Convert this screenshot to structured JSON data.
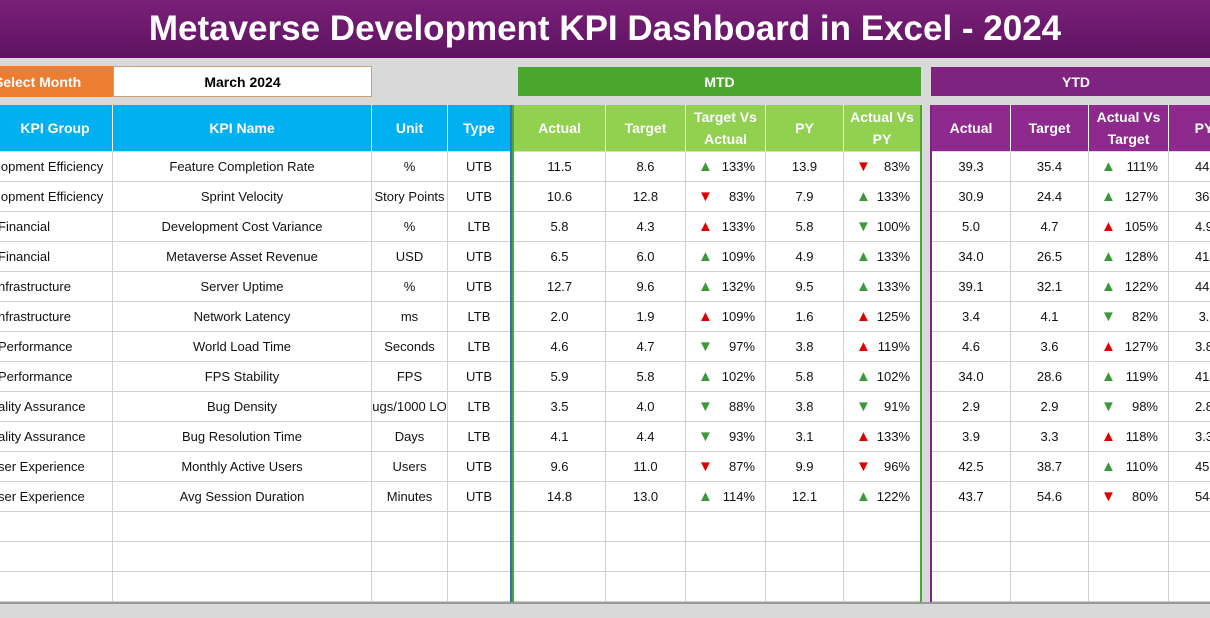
{
  "header": {
    "title": "Metaverse Development KPI Dashboard in Excel - 2024"
  },
  "controls": {
    "select_label": "Select Month",
    "month": "March 2024"
  },
  "sections": {
    "mtd": "MTD",
    "ytd": "YTD"
  },
  "table": {
    "columns": [
      "KPI Group",
      "KPI Name",
      "Unit",
      "Type",
      "Actual",
      "Target",
      "Target Vs Actual",
      "PY",
      "Actual Vs PY",
      "Actual",
      "Target",
      "Actual Vs Target",
      "PY"
    ],
    "rows": [
      [
        "lopment Efficiency",
        "Feature Completion Rate",
        "%",
        "UTB",
        "11.5",
        "8.6",
        "133%",
        "13.9",
        "83%",
        "39.3",
        "35.4",
        "111%",
        "44."
      ],
      [
        "lopment Efficiency",
        "Sprint Velocity",
        "Story Points",
        "UTB",
        "10.6",
        "12.8",
        "83%",
        "7.9",
        "133%",
        "30.9",
        "24.4",
        "127%",
        "36."
      ],
      [
        "Financial",
        "Development Cost Variance",
        "%",
        "LTB",
        "5.8",
        "4.3",
        "133%",
        "5.8",
        "100%",
        "5.0",
        "4.7",
        "105%",
        "4.9"
      ],
      [
        "Financial",
        "Metaverse Asset Revenue",
        "USD",
        "UTB",
        "6.5",
        "6.0",
        "109%",
        "4.9",
        "133%",
        "34.0",
        "26.5",
        "128%",
        "41."
      ],
      [
        "nfrastructure",
        "Server Uptime",
        "%",
        "UTB",
        "12.7",
        "9.6",
        "132%",
        "9.5",
        "133%",
        "39.1",
        "32.1",
        "122%",
        "44."
      ],
      [
        "nfrastructure",
        "Network Latency",
        "ms",
        "LTB",
        "2.0",
        "1.9",
        "109%",
        "1.6",
        "125%",
        "3.4",
        "4.1",
        "82%",
        "3."
      ],
      [
        "Performance",
        "World Load Time",
        "Seconds",
        "LTB",
        "4.6",
        "4.7",
        "97%",
        "3.8",
        "119%",
        "4.6",
        "3.6",
        "127%",
        "3.8"
      ],
      [
        "Performance",
        "FPS Stability",
        "FPS",
        "UTB",
        "5.9",
        "5.8",
        "102%",
        "5.8",
        "102%",
        "34.0",
        "28.6",
        "119%",
        "41."
      ],
      [
        "ality Assurance",
        "Bug Density",
        "ugs/1000 LO",
        "LTB",
        "3.5",
        "4.0",
        "88%",
        "3.8",
        "91%",
        "2.9",
        "2.9",
        "98%",
        "2.8"
      ],
      [
        "ality Assurance",
        "Bug Resolution Time",
        "Days",
        "LTB",
        "4.1",
        "4.4",
        "93%",
        "3.1",
        "133%",
        "3.9",
        "3.3",
        "118%",
        "3.3"
      ],
      [
        "ser Experience",
        "Monthly Active Users",
        "Users",
        "UTB",
        "9.6",
        "11.0",
        "87%",
        "9.9",
        "96%",
        "42.5",
        "38.7",
        "110%",
        "45."
      ],
      [
        "ser Experience",
        "Avg Session Duration",
        "Minutes",
        "UTB",
        "14.8",
        "13.0",
        "114%",
        "12.1",
        "122%",
        "43.7",
        "54.6",
        "80%",
        "54."
      ]
    ]
  }
}
